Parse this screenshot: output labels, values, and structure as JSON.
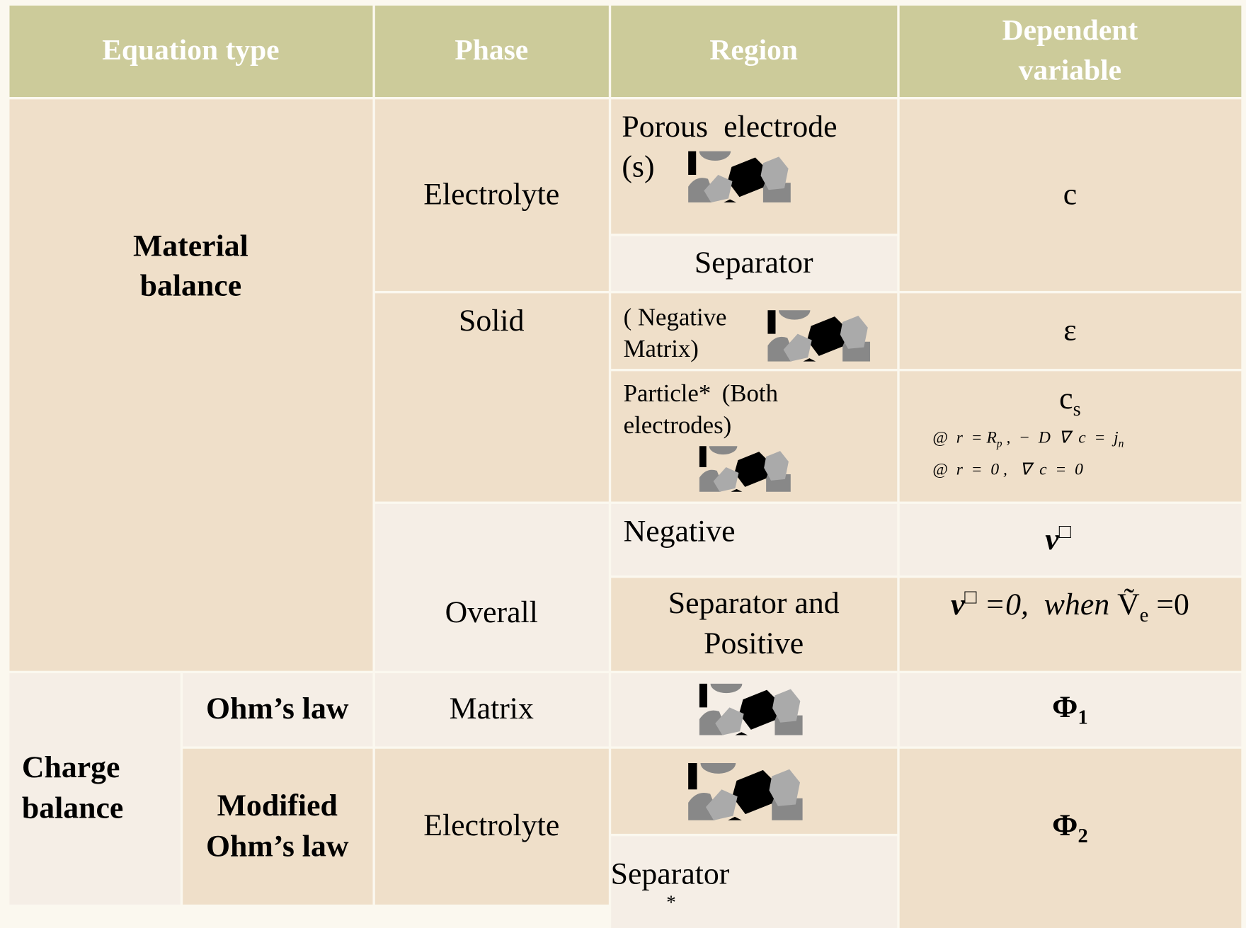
{
  "table": {
    "header": [
      "Equation type",
      "Phase",
      "Region",
      "Dependent variable"
    ],
    "equation_types": [
      "Material balance",
      "Charge balance"
    ],
    "sub_types": [
      "Ohm’s law",
      "Modified Ohm’s law"
    ],
    "phases": [
      "Electrolyte",
      "Solid",
      "Overall",
      "Matrix",
      "Electrolyte"
    ],
    "regions": [
      "Porous electrode (s)",
      "Separator",
      "( Negative Matrix)",
      "Particle* (Both electrodes)",
      "Negative",
      "Separator and Positive",
      "Separator"
    ],
    "variables": [
      [
        "c"
      ],
      [
        "ε"
      ],
      [
        "c",
        {
          "sub": "s"
        }
      ],
      [
        "v",
        {
          "sup": "□"
        }
      ],
      [
        "v",
        {
          "sup": "□"
        },
        " =0,  when ",
        "Ṽ",
        {
          "sub": "e"
        },
        " =0"
      ],
      [
        "Φ",
        {
          "sub": "1"
        }
      ],
      [
        "Φ",
        {
          "sub": "2"
        }
      ]
    ],
    "conditions": [
      [
        "@  r  = R",
        {
          "sub": "p"
        },
        " ,  −  D  ∇  c  =  j",
        {
          "sub": "n"
        }
      ],
      [
        "@  r  =  0 ,   ∇  c  =  0"
      ]
    ],
    "footnote_mark": "*"
  }
}
